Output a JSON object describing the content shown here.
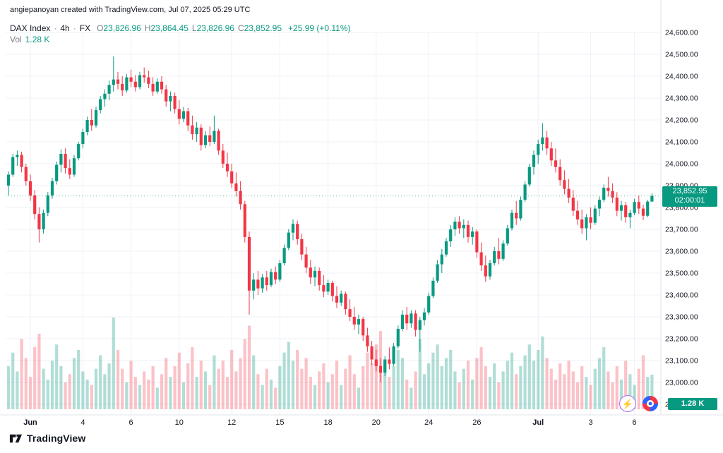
{
  "attribution": "angiepanoyan created with TradingView.com, Jul 07, 2025 05:29 UTC",
  "legend": {
    "symbol": "DAX Index",
    "sep": "·",
    "interval": "4h",
    "exchange": "FX",
    "ohlc": {
      "o_label": "O",
      "o_value": "23,826.96",
      "h_label": "H",
      "h_value": "23,864.45",
      "l_label": "L",
      "l_value": "23,826.96",
      "c_label": "C",
      "c_value": "23,852.95",
      "change": "+25.99 (+0.11%)"
    },
    "vol_label": "Vol",
    "vol_value": "1.28 K"
  },
  "price_badge": {
    "price": "23,852.95",
    "countdown": "02:00:01"
  },
  "volume_badge": "1.28 K",
  "footer": {
    "logo_text": "TradingView"
  },
  "icons": {
    "lightning": "⚡",
    "lightning_name": "lightning-boost-icon",
    "target_name": "target-ideas-icon",
    "logo_name": "tradingview-logo-icon"
  },
  "colors": {
    "up": "#089981",
    "down": "#F23645",
    "up_vol": "rgba(8,153,129,0.32)",
    "down_vol": "rgba(242,54,69,0.30)",
    "grid": "#EEF1F7",
    "axis_border": "#E0E3EB",
    "axis_text": "#131722",
    "muted": "#787B86",
    "price_line": "rgba(8,153,129,0.65)"
  },
  "chart_data": {
    "type": "candlestick+volume",
    "title": "DAX Index · 4h · FX",
    "legend_position": "top-left",
    "grid": true,
    "y_axis": {
      "min": 22900,
      "max": 24600,
      "step": 100,
      "side": "right",
      "format": "#,##0.00"
    },
    "last_price": 23852.95,
    "last_volume_k": 1.28,
    "bar_countdown": "02:00:01",
    "x_ticks": [
      {
        "i": 5,
        "label": "Jun",
        "bold": true
      },
      {
        "i": 17,
        "label": "4"
      },
      {
        "i": 28,
        "label": "6"
      },
      {
        "i": 39,
        "label": "10"
      },
      {
        "i": 51,
        "label": "12"
      },
      {
        "i": 62,
        "label": "15"
      },
      {
        "i": 73,
        "label": "18"
      },
      {
        "i": 84,
        "label": "20"
      },
      {
        "i": 96,
        "label": "24"
      },
      {
        "i": 107,
        "label": "26"
      },
      {
        "i": 121,
        "label": "Jul",
        "bold": true
      },
      {
        "i": 133,
        "label": "3"
      },
      {
        "i": 143,
        "label": "6"
      }
    ],
    "candles": [
      [
        23900,
        23965,
        23855,
        23950
      ],
      [
        23950,
        24045,
        23940,
        24030
      ],
      [
        24030,
        24060,
        23990,
        24040
      ],
      [
        24040,
        24055,
        23960,
        23985
      ],
      [
        23985,
        24000,
        23900,
        23920
      ],
      [
        23920,
        23950,
        23830,
        23855
      ],
      [
        23855,
        23880,
        23745,
        23770
      ],
      [
        23770,
        23800,
        23640,
        23700
      ],
      [
        23700,
        23790,
        23680,
        23775
      ],
      [
        23775,
        23870,
        23760,
        23855
      ],
      [
        23855,
        23935,
        23840,
        23920
      ],
      [
        23920,
        24010,
        23905,
        23995
      ],
      [
        23995,
        24065,
        23960,
        24045
      ],
      [
        24045,
        24070,
        23955,
        23980
      ],
      [
        23980,
        24020,
        23930,
        23950
      ],
      [
        23950,
        24040,
        23940,
        24025
      ],
      [
        24025,
        24100,
        24015,
        24090
      ],
      [
        24090,
        24160,
        24070,
        24145
      ],
      [
        24145,
        24215,
        24130,
        24200
      ],
      [
        24200,
        24250,
        24150,
        24175
      ],
      [
        24175,
        24260,
        24165,
        24245
      ],
      [
        24245,
        24310,
        24230,
        24295
      ],
      [
        24295,
        24340,
        24260,
        24320
      ],
      [
        24320,
        24380,
        24290,
        24360
      ],
      [
        24360,
        24490,
        24330,
        24385
      ],
      [
        24385,
        24420,
        24340,
        24365
      ],
      [
        24365,
        24400,
        24310,
        24335
      ],
      [
        24335,
        24410,
        24325,
        24395
      ],
      [
        24395,
        24430,
        24350,
        24375
      ],
      [
        24375,
        24405,
        24330,
        24350
      ],
      [
        24350,
        24420,
        24340,
        24405
      ],
      [
        24405,
        24440,
        24370,
        24395
      ],
      [
        24395,
        24425,
        24345,
        24365
      ],
      [
        24365,
        24395,
        24310,
        24330
      ],
      [
        24330,
        24390,
        24320,
        24375
      ],
      [
        24375,
        24400,
        24320,
        24340
      ],
      [
        24340,
        24360,
        24260,
        24285
      ],
      [
        24285,
        24330,
        24240,
        24310
      ],
      [
        24310,
        24325,
        24230,
        24250
      ],
      [
        24250,
        24290,
        24180,
        24205
      ],
      [
        24205,
        24260,
        24190,
        24240
      ],
      [
        24240,
        24255,
        24150,
        24175
      ],
      [
        24175,
        24220,
        24110,
        24135
      ],
      [
        24135,
        24190,
        24100,
        24165
      ],
      [
        24165,
        24180,
        24060,
        24085
      ],
      [
        24085,
        24150,
        24070,
        24130
      ],
      [
        24130,
        24170,
        24080,
        24100
      ],
      [
        24100,
        24220,
        24090,
        24150
      ],
      [
        24150,
        24160,
        24040,
        24060
      ],
      [
        24060,
        24090,
        23980,
        24000
      ],
      [
        24000,
        24050,
        23940,
        23965
      ],
      [
        23965,
        24000,
        23890,
        23910
      ],
      [
        23910,
        23960,
        23850,
        23875
      ],
      [
        23875,
        23920,
        23790,
        23815
      ],
      [
        23815,
        23830,
        23640,
        23665
      ],
      [
        23665,
        23690,
        23310,
        23420
      ],
      [
        23420,
        23500,
        23380,
        23470
      ],
      [
        23470,
        23510,
        23400,
        23430
      ],
      [
        23430,
        23495,
        23410,
        23480
      ],
      [
        23480,
        23510,
        23420,
        23445
      ],
      [
        23445,
        23520,
        23435,
        23505
      ],
      [
        23505,
        23530,
        23450,
        23470
      ],
      [
        23470,
        23560,
        23460,
        23545
      ],
      [
        23545,
        23630,
        23535,
        23615
      ],
      [
        23615,
        23700,
        23605,
        23685
      ],
      [
        23685,
        23745,
        23650,
        23725
      ],
      [
        23725,
        23740,
        23630,
        23655
      ],
      [
        23655,
        23680,
        23560,
        23585
      ],
      [
        23585,
        23620,
        23500,
        23525
      ],
      [
        23525,
        23560,
        23450,
        23480
      ],
      [
        23480,
        23530,
        23440,
        23510
      ],
      [
        23510,
        23525,
        23420,
        23445
      ],
      [
        23445,
        23490,
        23390,
        23415
      ],
      [
        23415,
        23470,
        23400,
        23455
      ],
      [
        23455,
        23465,
        23370,
        23395
      ],
      [
        23395,
        23440,
        23340,
        23365
      ],
      [
        23365,
        23420,
        23350,
        23405
      ],
      [
        23405,
        23415,
        23310,
        23335
      ],
      [
        23335,
        23380,
        23280,
        23300
      ],
      [
        23300,
        23345,
        23240,
        23265
      ],
      [
        23265,
        23310,
        23220,
        23290
      ],
      [
        23290,
        23300,
        23190,
        23215
      ],
      [
        23215,
        23250,
        23140,
        23165
      ],
      [
        23165,
        23190,
        23080,
        23105
      ],
      [
        23105,
        23150,
        23050,
        23075
      ],
      [
        23075,
        23110,
        23000,
        23045
      ],
      [
        23045,
        23120,
        23030,
        23105
      ],
      [
        23105,
        23160,
        23060,
        23085
      ],
      [
        23085,
        23180,
        23075,
        23165
      ],
      [
        23165,
        23260,
        23155,
        23245
      ],
      [
        23245,
        23330,
        23235,
        23310
      ],
      [
        23310,
        23345,
        23240,
        23270
      ],
      [
        23270,
        23330,
        23250,
        23315
      ],
      [
        23315,
        23330,
        23210,
        23240
      ],
      [
        23240,
        23300,
        23140,
        23285
      ],
      [
        23285,
        23340,
        23260,
        23320
      ],
      [
        23320,
        23410,
        23310,
        23395
      ],
      [
        23395,
        23480,
        23385,
        23465
      ],
      [
        23465,
        23560,
        23455,
        23540
      ],
      [
        23540,
        23610,
        23500,
        23585
      ],
      [
        23585,
        23660,
        23575,
        23645
      ],
      [
        23645,
        23720,
        23620,
        23700
      ],
      [
        23700,
        23755,
        23670,
        23735
      ],
      [
        23735,
        23760,
        23680,
        23705
      ],
      [
        23705,
        23745,
        23660,
        23720
      ],
      [
        23720,
        23740,
        23640,
        23665
      ],
      [
        23665,
        23710,
        23630,
        23690
      ],
      [
        23690,
        23700,
        23570,
        23595
      ],
      [
        23595,
        23640,
        23510,
        23535
      ],
      [
        23535,
        23580,
        23460,
        23485
      ],
      [
        23485,
        23560,
        23470,
        23545
      ],
      [
        23545,
        23620,
        23535,
        23600
      ],
      [
        23600,
        23660,
        23540,
        23565
      ],
      [
        23565,
        23650,
        23555,
        23635
      ],
      [
        23635,
        23720,
        23625,
        23705
      ],
      [
        23705,
        23790,
        23695,
        23775
      ],
      [
        23775,
        23830,
        23720,
        23750
      ],
      [
        23750,
        23850,
        23740,
        23835
      ],
      [
        23835,
        23920,
        23825,
        23905
      ],
      [
        23905,
        24000,
        23895,
        23985
      ],
      [
        23985,
        24060,
        23950,
        24040
      ],
      [
        24040,
        24110,
        24000,
        24090
      ],
      [
        24090,
        24185,
        24060,
        24120
      ],
      [
        24120,
        24150,
        24040,
        24070
      ],
      [
        24070,
        24100,
        23990,
        24015
      ],
      [
        24015,
        24070,
        23960,
        23985
      ],
      [
        23985,
        24020,
        23900,
        23925
      ],
      [
        23925,
        23970,
        23860,
        23885
      ],
      [
        23885,
        23930,
        23820,
        23845
      ],
      [
        23845,
        23880,
        23760,
        23785
      ],
      [
        23785,
        23830,
        23720,
        23745
      ],
      [
        23745,
        23790,
        23680,
        23705
      ],
      [
        23705,
        23770,
        23650,
        23755
      ],
      [
        23755,
        23800,
        23700,
        23730
      ],
      [
        23730,
        23810,
        23720,
        23795
      ],
      [
        23795,
        23850,
        23760,
        23835
      ],
      [
        23835,
        23905,
        23825,
        23890
      ],
      [
        23890,
        23940,
        23850,
        23875
      ],
      [
        23875,
        23910,
        23820,
        23845
      ],
      [
        23845,
        23870,
        23760,
        23785
      ],
      [
        23785,
        23830,
        23740,
        23810
      ],
      [
        23810,
        23825,
        23730,
        23755
      ],
      [
        23755,
        23790,
        23705,
        23775
      ],
      [
        23775,
        23840,
        23765,
        23825
      ],
      [
        23825,
        23855,
        23770,
        23795
      ],
      [
        23795,
        23812,
        23742,
        23762
      ],
      [
        23762,
        23835,
        23755,
        23827
      ],
      [
        23826.96,
        23864.45,
        23826.96,
        23852.95
      ]
    ],
    "volumes_k": [
      1.6,
      2.1,
      1.4,
      2.6,
      1.9,
      1.2,
      2.3,
      2.8,
      1.5,
      1.1,
      1.8,
      2.4,
      1.6,
      1.0,
      1.3,
      1.9,
      2.2,
      1.4,
      1.1,
      0.9,
      1.5,
      2.0,
      1.3,
      1.7,
      3.4,
      2.2,
      1.5,
      1.0,
      1.8,
      1.2,
      0.9,
      1.4,
      1.1,
      1.6,
      0.8,
      1.3,
      1.9,
      1.2,
      1.6,
      2.1,
      1.0,
      1.7,
      2.3,
      1.2,
      1.8,
      1.4,
      0.9,
      2.0,
      1.5,
      1.8,
      1.2,
      2.2,
      1.4,
      1.9,
      2.6,
      3.1,
      2.0,
      1.3,
      0.9,
      1.5,
      1.1,
      0.8,
      1.6,
      2.1,
      2.5,
      1.8,
      2.2,
      1.5,
      1.9,
      1.2,
      0.9,
      1.4,
      1.7,
      1.0,
      1.3,
      1.8,
      0.9,
      1.5,
      2.0,
      1.3,
      0.8,
      1.6,
      2.1,
      1.7,
      2.4,
      2.9,
      1.8,
      1.2,
      1.6,
      2.2,
      1.9,
      1.1,
      0.8,
      1.4,
      2.6,
      1.3,
      1.7,
      2.1,
      2.4,
      1.6,
      1.9,
      2.2,
      1.4,
      1.0,
      1.5,
      1.8,
      1.1,
      1.9,
      2.3,
      1.6,
      1.2,
      1.7,
      1.0,
      1.4,
      1.8,
      2.1,
      1.3,
      1.6,
      2.0,
      2.4,
      1.8,
      2.2,
      2.7,
      1.9,
      1.5,
      1.1,
      1.7,
      1.3,
      1.8,
      1.4,
      1.0,
      1.6,
      1.2,
      0.9,
      1.5,
      1.9,
      2.3,
      1.4,
      1.0,
      1.6,
      1.1,
      1.8,
      1.3,
      0.9,
      1.5,
      2.0,
      1.2,
      1.28
    ]
  }
}
